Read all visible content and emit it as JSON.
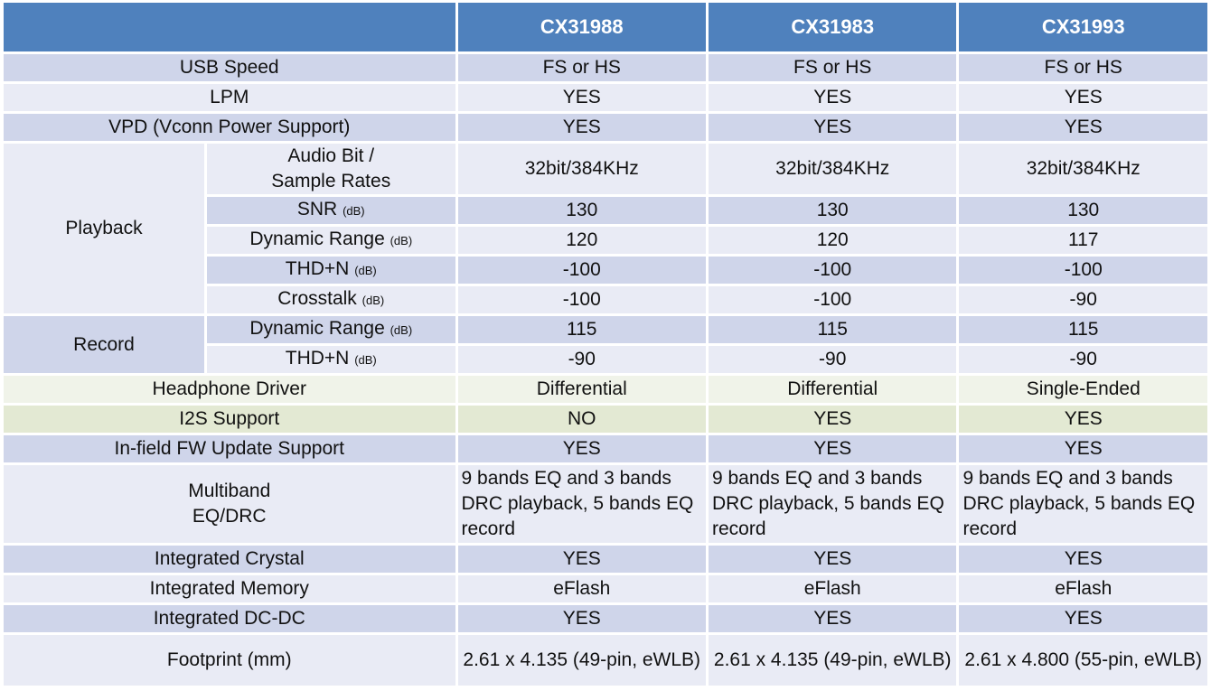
{
  "columns": {
    "products": [
      "CX31988",
      "CX31983",
      "CX31993"
    ]
  },
  "rows": {
    "usb_speed": {
      "label": "USB Speed",
      "values": [
        "FS or HS",
        "FS or HS",
        "FS or HS"
      ]
    },
    "lpm": {
      "label": "LPM",
      "values": [
        "YES",
        "YES",
        "YES"
      ]
    },
    "vpd": {
      "label": "VPD (Vconn Power Support)",
      "values": [
        "YES",
        "YES",
        "YES"
      ]
    },
    "playback": {
      "group": "Playback",
      "audio_bit": {
        "label_line1": "Audio Bit /",
        "label_line2": "Sample Rates",
        "values": [
          "32bit/384KHz",
          "32bit/384KHz",
          "32bit/384KHz"
        ]
      },
      "snr": {
        "label": "SNR",
        "unit": "(dB)",
        "values": [
          "130",
          "130",
          "130"
        ]
      },
      "dynamic_range": {
        "label": "Dynamic Range",
        "unit": "(dB)",
        "values": [
          "120",
          "120",
          "117"
        ]
      },
      "thdn": {
        "label": "THD+N",
        "unit": "(dB)",
        "values": [
          "-100",
          "-100",
          "-100"
        ]
      },
      "crosstalk": {
        "label": "Crosstalk",
        "unit": "(dB)",
        "values": [
          "-100",
          "-100",
          "-90"
        ]
      }
    },
    "record": {
      "group": "Record",
      "dynamic_range": {
        "label": "Dynamic Range",
        "unit": "(dB)",
        "values": [
          "115",
          "115",
          "115"
        ]
      },
      "thdn": {
        "label": "THD+N",
        "unit": "(dB)",
        "values": [
          "-90",
          "-90",
          "-90"
        ]
      }
    },
    "headphone": {
      "label": "Headphone  Driver",
      "values": [
        "Differential",
        "Differential",
        "Single-Ended"
      ]
    },
    "i2s": {
      "label": "I2S Support",
      "values": [
        "NO",
        "YES",
        "YES"
      ]
    },
    "fw_update": {
      "label": "In-field  FW Update Support",
      "values": [
        "YES",
        "YES",
        "YES"
      ]
    },
    "eq": {
      "label_line1": "Multiband",
      "label_line2": "EQ/DRC",
      "values": [
        "9 bands EQ and 3 bands DRC playback, 5 bands EQ record",
        "9 bands EQ and 3 bands DRC playback, 5 bands EQ record",
        "9 bands EQ and 3 bands DRC playback, 5 bands EQ record"
      ]
    },
    "crystal": {
      "label": "Integrated  Crystal",
      "values": [
        "YES",
        "YES",
        "YES"
      ]
    },
    "memory": {
      "label": "Integrated  Memory",
      "values": [
        "eFlash",
        "eFlash",
        "eFlash"
      ]
    },
    "dcdc": {
      "label": "Integrated  DC-DC",
      "values": [
        "YES",
        "YES",
        "YES"
      ]
    },
    "footprint": {
      "label": "Footprint (mm)",
      "values": [
        "2.61 x 4.135 (49-pin, eWLB)",
        "2.61 x 4.135 (49-pin, eWLB)",
        "2.61 x 4.800 (55-pin, eWLB)"
      ]
    }
  }
}
